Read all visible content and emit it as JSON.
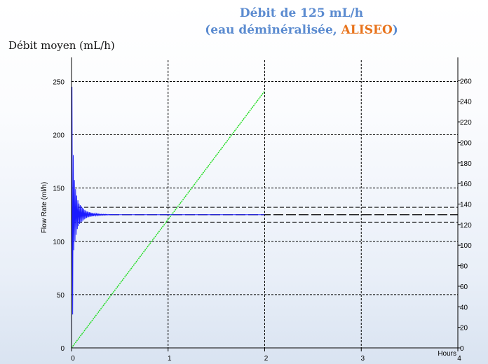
{
  "title_line1": "Débit de 125 mL/h",
  "title_line2_prefix": "(eau déminéralisée, ",
  "title_line2_accent": "ALISEO",
  "title_line2_suffix": ")",
  "main_ylabel": "Débit moyen (mL/h)",
  "colors": {
    "title": "#5b8bd0",
    "accent": "#e8731c",
    "flow_rate": "#1a1aff",
    "volume": "#22dd22",
    "grid": "#000000"
  },
  "chart_data": {
    "type": "line",
    "xlabel": "Hours",
    "ylabel": "Flow Rate (ml/h)",
    "xlim": [
      0,
      4
    ],
    "x_ticks": [
      "0",
      "1",
      "2",
      "3",
      "4"
    ],
    "ylim": [
      0,
      270
    ],
    "y_ticks": [
      "0",
      "50",
      "100",
      "150",
      "200",
      "250"
    ],
    "y2lim": [
      0,
      280
    ],
    "y2_ticks": [
      "0",
      "20",
      "40",
      "60",
      "80",
      "100",
      "120",
      "140",
      "160",
      "180",
      "200",
      "220",
      "240",
      "260"
    ],
    "grid": true,
    "reference_lines": {
      "setpoint": 125,
      "upper_limit": 132,
      "lower_limit": 118
    },
    "series": [
      {
        "axis": "y",
        "x": [
          0,
          0.01,
          0.02,
          0.04,
          0.06,
          0.08,
          0.1,
          0.13,
          0.16,
          0.2,
          0.25,
          0.3,
          0.4,
          0.5,
          0.75,
          1,
          2
        ],
        "y": [
          0,
          245,
          165,
          150,
          140,
          135,
          133,
          130,
          128,
          127,
          126,
          125.5,
          125.2,
          125,
          125,
          125,
          125
        ]
      },
      {
        "axis": "y2",
        "x": [
          0,
          1,
          2
        ],
        "y": [
          0,
          125,
          250
        ]
      }
    ]
  }
}
